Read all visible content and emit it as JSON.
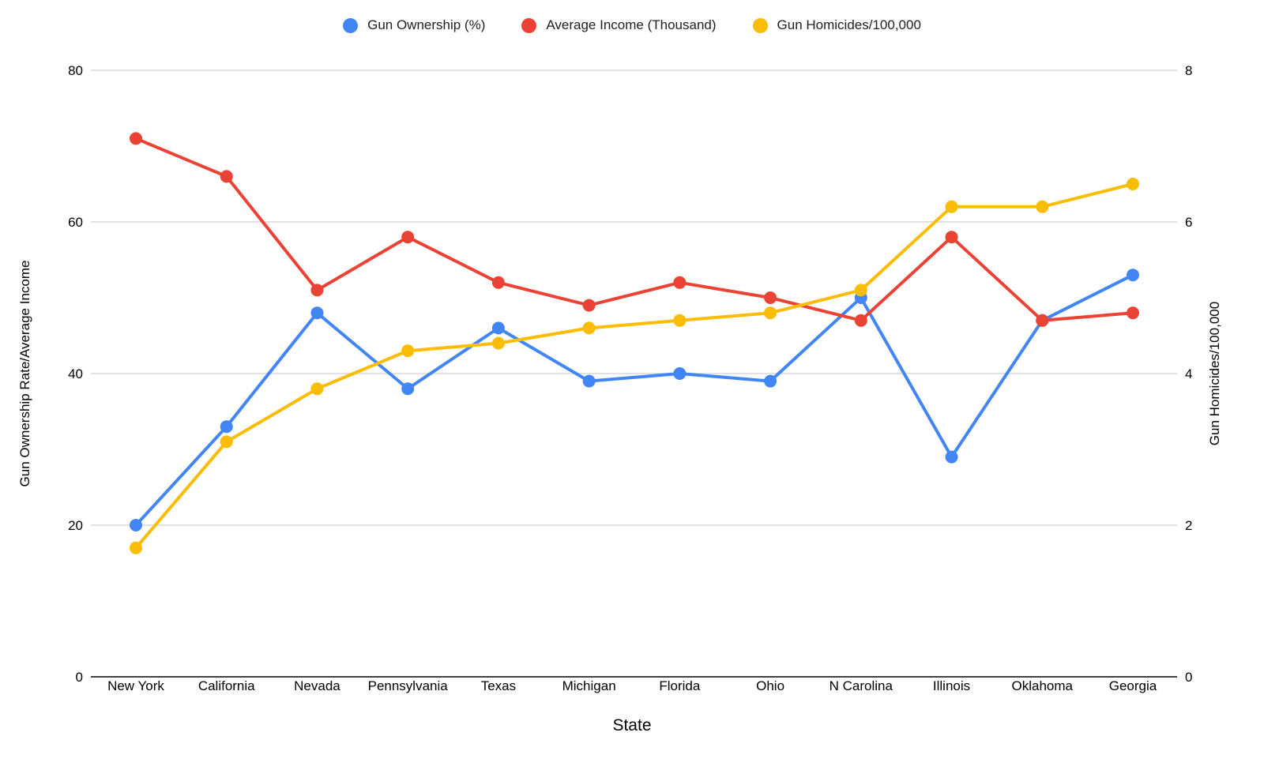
{
  "chart_data": {
    "type": "line",
    "title": "",
    "xlabel": "State",
    "ylabel_left": "Gun Ownership Rate/Average Income",
    "ylabel_right": "Gun Homicides/100,000",
    "categories": [
      "New York",
      "California",
      "Nevada",
      "Pennsylvania",
      "Texas",
      "Michigan",
      "Florida",
      "Ohio",
      "N Carolina",
      "Illinois",
      "Oklahoma",
      "Georgia"
    ],
    "series": [
      {
        "name": "Gun Ownership (%)",
        "axis": "left",
        "color": "#4285F4",
        "values": [
          20,
          33,
          48,
          38,
          46,
          39,
          40,
          39,
          50,
          29,
          47,
          53
        ]
      },
      {
        "name": "Average Income (Thousand)",
        "axis": "left",
        "color": "#EA4335",
        "values": [
          71,
          66,
          51,
          58,
          52,
          49,
          52,
          50,
          47,
          58,
          47,
          48
        ]
      },
      {
        "name": "Gun Homicides/100,000",
        "axis": "right",
        "color": "#FBBC04",
        "values": [
          1.7,
          3.1,
          3.8,
          4.3,
          4.4,
          4.6,
          4.7,
          4.8,
          5.1,
          6.2,
          6.2,
          6.5
        ]
      }
    ],
    "left_axis": {
      "min": 0,
      "max": 80,
      "ticks": [
        0,
        20,
        40,
        60,
        80
      ]
    },
    "right_axis": {
      "min": 0,
      "max": 8,
      "ticks": [
        0,
        2,
        4,
        6,
        8
      ]
    },
    "grid": true,
    "legend_position": "top",
    "colors": {
      "grid": "#d9d9d9",
      "axis_line": "#424242",
      "text": "#000000",
      "background": "#ffffff"
    }
  }
}
